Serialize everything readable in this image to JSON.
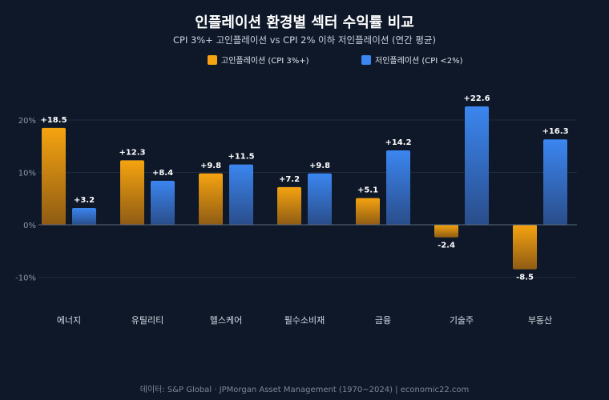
{
  "chart_data": {
    "type": "bar",
    "title": "인플레이션 환경별 섹터 수익률 비교",
    "subtitle": "CPI 3%+ 고인플레이션 vs CPI 2% 이하 저인플레이션 (연간 평균)",
    "categories": [
      "에너지",
      "유틸리티",
      "헬스케어",
      "필수소비재",
      "금융",
      "기술주",
      "부동산"
    ],
    "series": [
      {
        "name": "고인플레이션 (CPI 3%+)",
        "values": [
          18.5,
          12.3,
          9.8,
          7.2,
          5.1,
          -2.4,
          -8.5
        ],
        "labels": [
          "+18.5",
          "+12.3",
          "+9.8",
          "+7.2",
          "+5.1",
          "-2.4",
          "-8.5"
        ],
        "color_top": "#f5a310",
        "color_bottom": "#8f5c14"
      },
      {
        "name": "저인플레이션 (CPI <2%)",
        "values": [
          3.2,
          8.4,
          11.5,
          9.8,
          14.2,
          22.6,
          16.3
        ],
        "labels": [
          "+3.2",
          "+8.4",
          "+11.5",
          "+9.8",
          "+14.2",
          "+22.6",
          "+16.3"
        ],
        "color_top": "#3b86f0",
        "color_bottom": "#2a4d8a"
      }
    ],
    "y_ticks": [
      -10,
      0,
      10,
      20
    ],
    "y_tick_labels": [
      "-10%",
      "0%",
      "10%",
      "20%"
    ],
    "ylim": [
      -15,
      27
    ],
    "grid": true,
    "legend_position": "top-center",
    "source": "데이터: S&P Global · JPMorgan Asset Management (1970~2024) | economic22.com"
  }
}
